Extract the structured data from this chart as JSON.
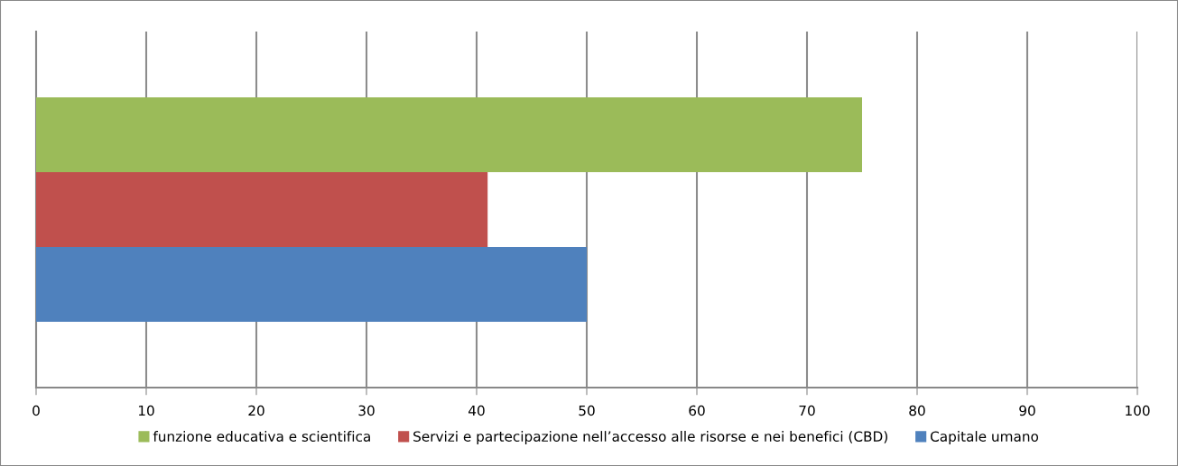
{
  "chart_data": {
    "type": "bar",
    "orientation": "horizontal",
    "categories": [
      null
    ],
    "series": [
      {
        "name": "funzione educativa e scientifica",
        "color": "#9bbb59",
        "values": [
          75
        ]
      },
      {
        "name": "Servizi e partecipazione nell’accesso alle risorse e nei benefici (CBD)",
        "color": "#c0504d",
        "values": [
          41
        ]
      },
      {
        "name": "Capitale umano",
        "color": "#4f81bd",
        "values": [
          50
        ]
      }
    ],
    "xlim": [
      0,
      100
    ],
    "xticks": [
      0,
      10,
      20,
      30,
      40,
      50,
      60,
      70,
      80,
      90,
      100
    ],
    "grid": "x",
    "legend": "bottom"
  }
}
